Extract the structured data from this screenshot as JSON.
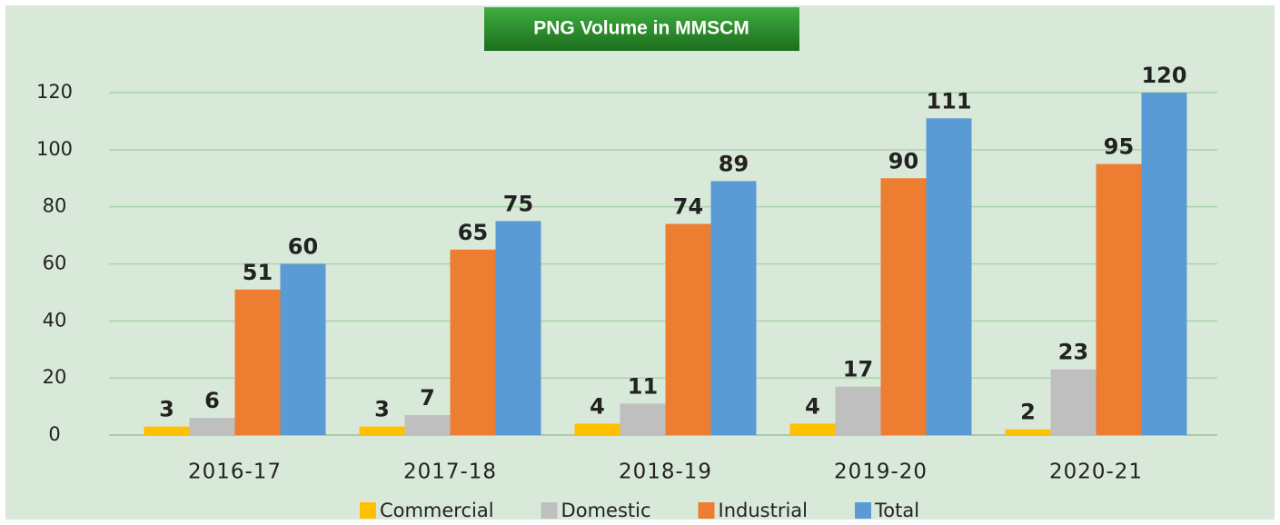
{
  "chart_data": {
    "type": "bar",
    "title": "PNG Volume in MMSCM",
    "categories": [
      "2016-17",
      "2017-18",
      "2018-19",
      "2019-20",
      "2020-21"
    ],
    "series": [
      {
        "name": "Commercial",
        "color": "#ffc000",
        "values": [
          3,
          3,
          4,
          4,
          2
        ]
      },
      {
        "name": "Domestic",
        "color": "#bfbfbf",
        "values": [
          6,
          7,
          11,
          17,
          23
        ]
      },
      {
        "name": "Industrial",
        "color": "#ed7d31",
        "values": [
          51,
          65,
          74,
          90,
          95
        ]
      },
      {
        "name": "Total",
        "color": "#5b9bd5",
        "values": [
          60,
          75,
          89,
          111,
          120
        ]
      }
    ],
    "ylim": [
      0,
      120
    ],
    "yticks": [
      0,
      20,
      40,
      60,
      80,
      100,
      120
    ],
    "grid": true,
    "legend": "bottom"
  }
}
